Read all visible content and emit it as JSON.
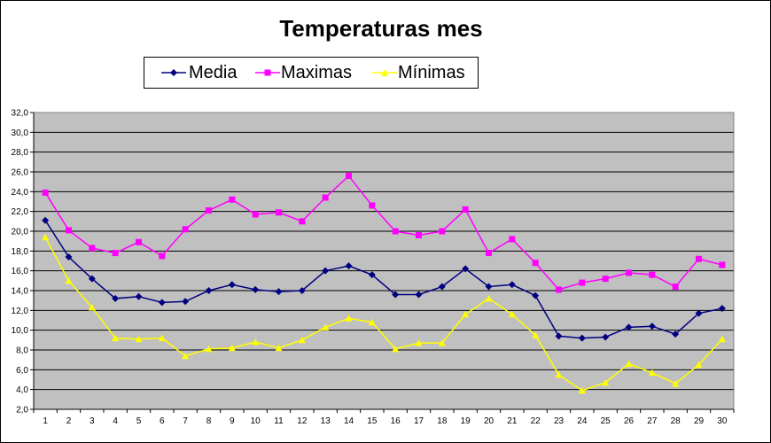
{
  "chart_data": {
    "type": "line",
    "title": "Temperaturas mes",
    "xlabel": "",
    "ylabel": "",
    "x": [
      1,
      2,
      3,
      4,
      5,
      6,
      7,
      8,
      9,
      10,
      11,
      12,
      13,
      14,
      15,
      16,
      17,
      18,
      19,
      20,
      21,
      22,
      23,
      24,
      25,
      26,
      27,
      28,
      29,
      30
    ],
    "ylim": [
      2.0,
      32.0
    ],
    "ytick_step": 2.0,
    "yticks": [
      "2,0",
      "4,0",
      "6,0",
      "8,0",
      "10,0",
      "12,0",
      "14,0",
      "16,0",
      "18,0",
      "20,0",
      "22,0",
      "24,0",
      "26,0",
      "28,0",
      "30,0",
      "32,0"
    ],
    "grid": true,
    "plot_background": "#c0c0c0",
    "legend_position": "top",
    "series": [
      {
        "name": "Media",
        "color": "#000080",
        "marker": "diamond",
        "values": [
          21.1,
          17.4,
          15.2,
          13.2,
          13.4,
          12.8,
          12.9,
          14.0,
          14.6,
          14.1,
          13.9,
          14.0,
          16.0,
          16.5,
          15.6,
          13.6,
          13.6,
          14.4,
          16.2,
          14.4,
          14.6,
          13.5,
          9.4,
          9.2,
          9.3,
          10.3,
          10.4,
          9.6,
          11.7,
          12.2
        ]
      },
      {
        "name": "Maximas",
        "color": "#ff00ff",
        "marker": "square",
        "values": [
          23.9,
          20.1,
          18.3,
          17.8,
          18.9,
          17.5,
          20.2,
          22.1,
          23.2,
          21.7,
          21.9,
          21.0,
          23.4,
          25.6,
          22.6,
          20.0,
          19.6,
          20.0,
          22.2,
          17.8,
          19.2,
          16.8,
          14.1,
          14.8,
          15.2,
          15.8,
          15.6,
          14.4,
          17.2,
          16.6
        ]
      },
      {
        "name": "Mínimas",
        "color": "#ffff00",
        "marker": "triangle",
        "values": [
          19.4,
          15.0,
          12.3,
          9.2,
          9.1,
          9.2,
          7.4,
          8.1,
          8.2,
          8.8,
          8.2,
          9.0,
          10.3,
          11.2,
          10.8,
          8.1,
          8.7,
          8.7,
          11.6,
          13.2,
          11.6,
          9.5,
          5.5,
          3.9,
          4.7,
          6.6,
          5.7,
          4.6,
          6.5,
          9.1
        ]
      }
    ]
  }
}
